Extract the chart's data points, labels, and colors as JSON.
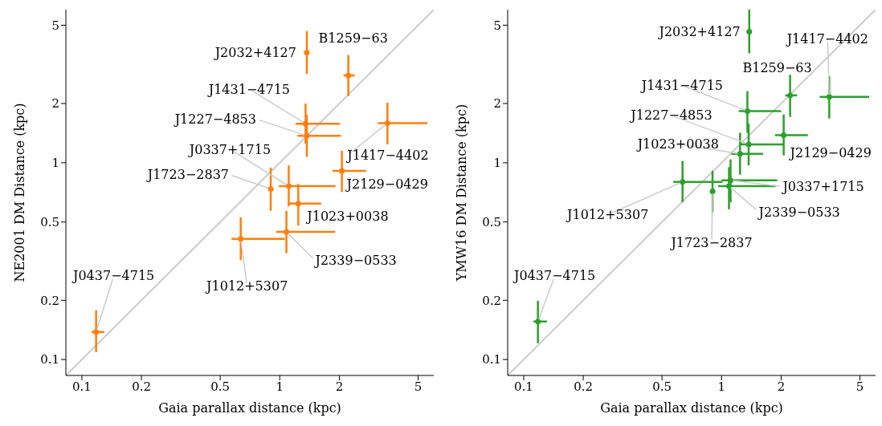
{
  "chart_data": [
    {
      "type": "scatter",
      "xlabel": "Gaia parallax distance (kpc)",
      "ylabel": "NE2001 DM Distance (kpc)",
      "log": "xy",
      "xlim": [
        0.083,
        6
      ],
      "ylim": [
        0.083,
        6
      ],
      "xticks": [
        0.1,
        0.2,
        0.5,
        1,
        2,
        5
      ],
      "yticks": [
        0.1,
        0.2,
        0.5,
        1,
        2,
        5
      ],
      "series": [
        {
          "marker": "circle",
          "color": "#ff7f0e",
          "x": [
            1.37,
            2.22,
            1.35,
            1.37,
            3.5,
            2.06,
            1.11,
            0.9,
            1.24,
            1.08,
            0.635,
            0.118
          ],
          "values": [
            3.63,
            2.78,
            1.58,
            1.37,
            1.59,
            0.91,
            0.76,
            0.736,
            0.62,
            0.446,
            0.41,
            0.138
          ],
          "errors": [
            [
              2.83,
              4.67
            ],
            [
              2.18,
              3.53
            ],
            [
              1.25,
              2.0
            ],
            [
              1.07,
              1.75
            ],
            [
              1.24,
              2.02
            ],
            [
              0.71,
              1.15
            ],
            [
              0.6,
              0.97
            ],
            [
              0.57,
              0.945
            ],
            [
              0.48,
              0.78
            ],
            [
              0.347,
              0.57
            ],
            [
              0.32,
              0.527
            ],
            [
              0.109,
              0.178
            ]
          ],
          "xerrors": [
            [
              1.33,
              1.41
            ],
            [
              2.1,
              2.39
            ],
            [
              1.2,
              2.01
            ],
            [
              1.23,
              2.04
            ],
            [
              3.13,
              5.57
            ],
            [
              1.85,
              2.73
            ],
            [
              0.99,
              1.91
            ],
            [
              0.88,
              0.93
            ],
            [
              1.1,
              1.62
            ],
            [
              0.96,
              1.9
            ],
            [
              0.57,
              1.06
            ],
            [
              0.112,
              0.13
            ]
          ]
        },
        {
          "type": "line",
          "color": "#cccccc",
          "x": [
            0.083,
            6
          ],
          "values": [
            0.083,
            6
          ]
        }
      ],
      "annotations": [
        {
          "text": "J2032+4127",
          "x": 1.37,
          "y": 3.63
        },
        {
          "text": "B1259−63",
          "x": 2.22,
          "y": 2.78
        },
        {
          "text": "J1431−4715",
          "x": 1.35,
          "y": 1.58
        },
        {
          "text": "J1227−4853",
          "x": 1.37,
          "y": 1.37
        },
        {
          "text": "J1417−4402",
          "x": 3.5,
          "y": 1.59
        },
        {
          "text": "J2129−0429",
          "x": 2.06,
          "y": 0.91
        },
        {
          "text": "J0337+1715",
          "x": 1.11,
          "y": 0.76
        },
        {
          "text": "J1723−2837",
          "x": 0.9,
          "y": 0.736
        },
        {
          "text": "J1023+0038",
          "x": 1.24,
          "y": 0.62
        },
        {
          "text": "J2339−0533",
          "x": 1.08,
          "y": 0.446
        },
        {
          "text": "J1012+5307",
          "x": 0.635,
          "y": 0.41
        },
        {
          "text": "J0437−4715",
          "x": 0.118,
          "y": 0.138
        }
      ]
    },
    {
      "type": "scatter",
      "xlabel": "Gaia parallax distance (kpc)",
      "ylabel": "YMW16 DM Distance (kpc)",
      "log": "xy",
      "xlim": [
        0.083,
        6
      ],
      "ylim": [
        0.083,
        6
      ],
      "xticks": [
        0.1,
        0.2,
        0.5,
        1,
        2,
        5
      ],
      "yticks": [
        0.1,
        0.2,
        0.5,
        1,
        2,
        5
      ],
      "series": [
        {
          "marker": "circle",
          "color": "#2ca02c",
          "x": [
            1.38,
            2.22,
            1.35,
            1.37,
            3.5,
            2.06,
            1.11,
            0.9,
            1.24,
            1.09,
            0.635,
            0.118
          ],
          "values": [
            4.63,
            2.2,
            1.83,
            1.24,
            2.16,
            1.38,
            0.815,
            0.716,
            1.11,
            0.76,
            0.8,
            0.156
          ],
          "errors": [
            [
              3.6,
              6.0
            ],
            [
              1.71,
              2.8
            ],
            [
              1.42,
              2.31
            ],
            [
              0.97,
              1.58
            ],
            [
              1.68,
              2.75
            ],
            [
              1.09,
              1.76
            ],
            [
              0.63,
              1.04
            ],
            [
              0.56,
              0.91
            ],
            [
              0.87,
              1.42
            ],
            [
              0.58,
              0.95
            ],
            [
              0.63,
              1.02
            ],
            [
              0.121,
              0.199
            ]
          ],
          "xerrors": [
            [
              1.34,
              1.42
            ],
            [
              2.1,
              2.41
            ],
            [
              1.22,
              2.0
            ],
            [
              1.24,
              2.06
            ],
            [
              3.13,
              5.57
            ],
            [
              1.86,
              2.73
            ],
            [
              1.0,
              1.91
            ],
            [
              0.88,
              0.93
            ],
            [
              1.12,
              1.62
            ],
            [
              0.96,
              1.88
            ],
            [
              0.57,
              1.01
            ],
            [
              0.112,
              0.131
            ]
          ]
        },
        {
          "type": "line",
          "color": "#cccccc",
          "x": [
            0.083,
            6
          ],
          "values": [
            0.083,
            6
          ]
        }
      ],
      "annotations": [
        {
          "text": "J2032+4127",
          "x": 1.38,
          "y": 4.63
        },
        {
          "text": "B1259−63",
          "x": 2.22,
          "y": 2.2
        },
        {
          "text": "J1431−4715",
          "x": 1.35,
          "y": 1.83
        },
        {
          "text": "J1227−4853",
          "x": 1.37,
          "y": 1.24
        },
        {
          "text": "J1417−4402",
          "x": 3.5,
          "y": 2.16
        },
        {
          "text": "J2129−0429",
          "x": 2.06,
          "y": 1.38
        },
        {
          "text": "J0337+1715",
          "x": 1.11,
          "y": 0.815
        },
        {
          "text": "J1723−2837",
          "x": 0.9,
          "y": 0.716
        },
        {
          "text": "J1023+0038",
          "x": 1.24,
          "y": 1.11
        },
        {
          "text": "J2339−0533",
          "x": 1.09,
          "y": 0.76
        },
        {
          "text": "J1012+5307",
          "x": 0.635,
          "y": 0.8
        },
        {
          "text": "J0437−4715",
          "x": 0.118,
          "y": 0.156
        }
      ]
    }
  ]
}
